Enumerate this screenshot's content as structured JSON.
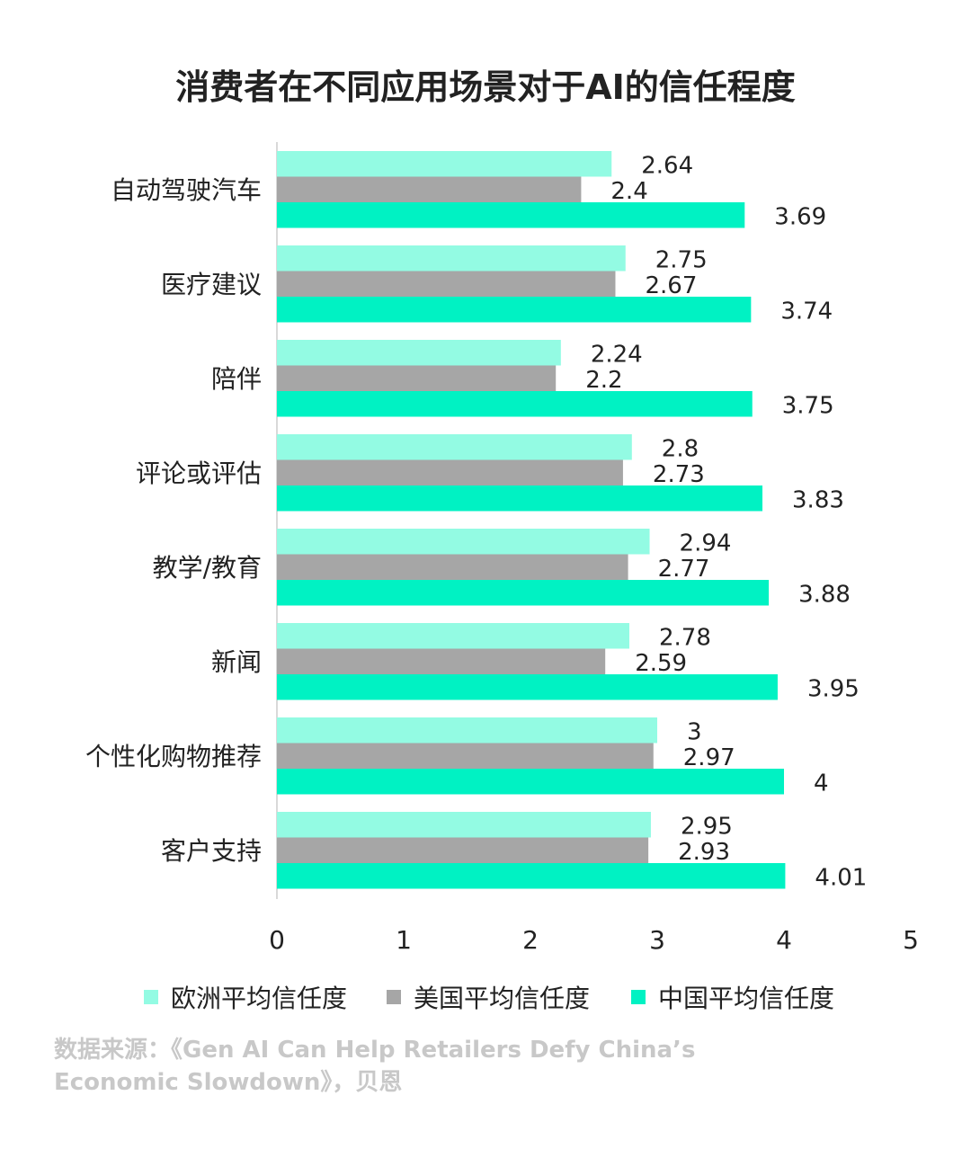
{
  "chart_data": {
    "type": "bar",
    "orientation": "horizontal",
    "title": "消费者在不同应用场景对于AI的信任程度",
    "categories": [
      "自动驾驶汽车",
      "医疗建议",
      "陪伴",
      "评论或评估",
      "教学/教育",
      "新闻",
      "个性化购物推荐",
      "客户支持"
    ],
    "series": [
      {
        "name": "欧洲平均信任度",
        "color": "#93FBE3",
        "values": [
          2.64,
          2.75,
          2.24,
          2.8,
          2.94,
          2.78,
          3,
          2.95
        ]
      },
      {
        "name": "美国平均信任度",
        "color": "#A6A6A6",
        "values": [
          2.4,
          2.67,
          2.2,
          2.73,
          2.77,
          2.59,
          2.97,
          2.93
        ]
      },
      {
        "name": "中国平均信任度",
        "color": "#00F2C3",
        "values": [
          3.69,
          3.74,
          3.75,
          3.83,
          3.88,
          3.95,
          4,
          4.01
        ]
      }
    ],
    "xlim": [
      0,
      5
    ],
    "xticks": [
      "0",
      "1",
      "2",
      "3",
      "4",
      "5"
    ],
    "grid": false,
    "legend_position": "bottom"
  },
  "source": "数据来源：《Gen AI Can Help Retailers Defy China’s Economic Slowdown》，贝恩"
}
